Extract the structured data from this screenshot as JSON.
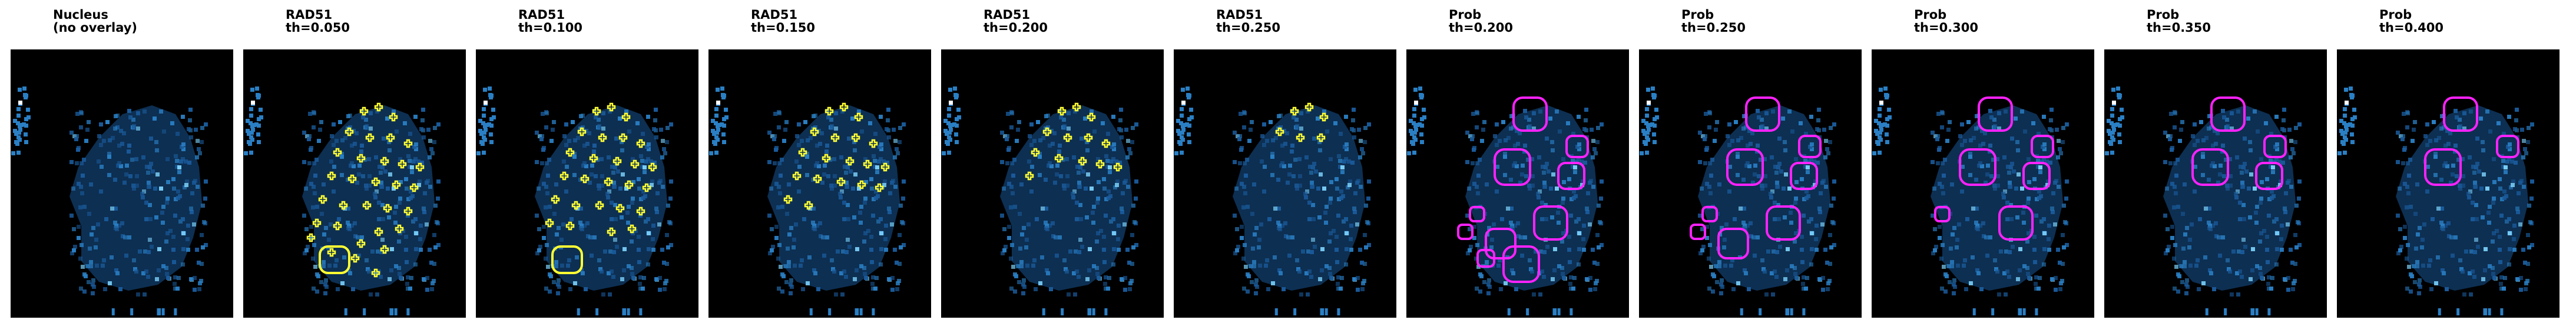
{
  "panels": [
    {
      "line1": "Nucleus",
      "line2": "(no overlay)",
      "overlay": "none",
      "color": ""
    },
    {
      "line1": "RAD51",
      "line2": "th=0.050",
      "overlay": "rad51",
      "level": 5,
      "color": "#ffff33"
    },
    {
      "line1": "RAD51",
      "line2": "th=0.100",
      "overlay": "rad51",
      "level": 4,
      "color": "#ffff33"
    },
    {
      "line1": "RAD51",
      "line2": "th=0.150",
      "overlay": "rad51",
      "level": 3,
      "color": "#ffff33"
    },
    {
      "line1": "RAD51",
      "line2": "th=0.200",
      "overlay": "rad51",
      "level": 2,
      "color": "#ffff33"
    },
    {
      "line1": "RAD51",
      "line2": "th=0.250",
      "overlay": "rad51",
      "level": 1,
      "color": "#ffff33"
    },
    {
      "line1": "Prob",
      "line2": "th=0.200",
      "overlay": "prob",
      "level": 5,
      "color": "#ff22ff"
    },
    {
      "line1": "Prob",
      "line2": "th=0.250",
      "overlay": "prob",
      "level": 4,
      "color": "#ff22ff"
    },
    {
      "line1": "Prob",
      "line2": "th=0.300",
      "overlay": "prob",
      "level": 3,
      "color": "#ff22ff"
    },
    {
      "line1": "Prob",
      "line2": "th=0.350",
      "overlay": "prob",
      "level": 2,
      "color": "#ff22ff"
    },
    {
      "line1": "Prob",
      "line2": "th=0.400",
      "overlay": "prob",
      "level": 1,
      "color": "#ff22ff"
    }
  ],
  "colors": {
    "background": "#000000",
    "nucleus": "#1a5a9a",
    "bright": "#7fd6ff"
  }
}
